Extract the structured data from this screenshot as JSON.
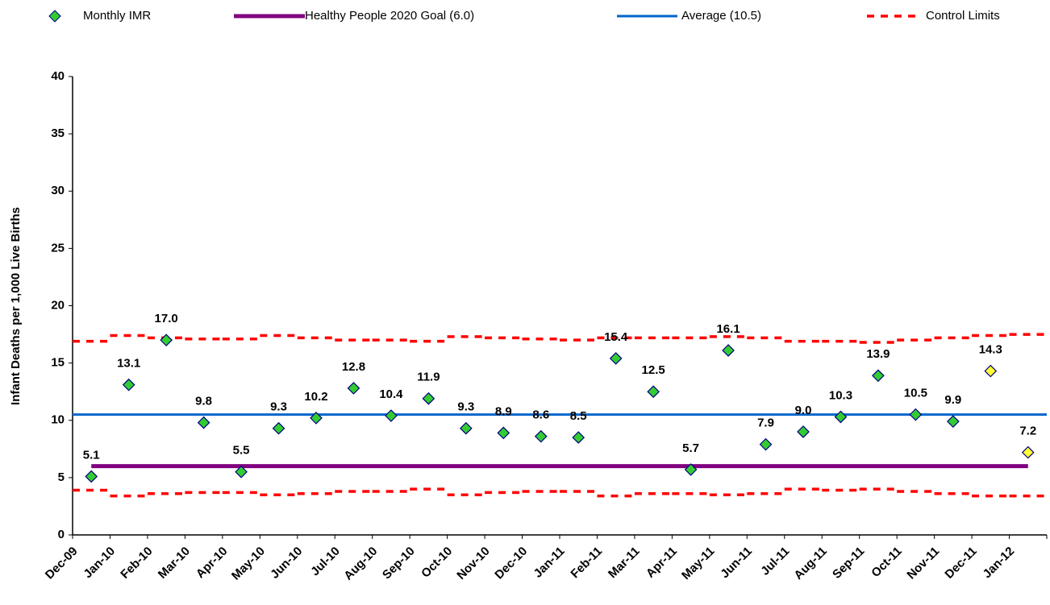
{
  "chart_data": {
    "type": "control-chart",
    "y_label": "Infant Deaths per 1,000 Live Births",
    "categories": [
      "Dec-09",
      "Jan-10",
      "Feb-10",
      "Mar-10",
      "Apr-10",
      "May-10",
      "Jun-10",
      "Jul-10",
      "Aug-10",
      "Sep-10",
      "Oct-10",
      "Nov-10",
      "Dec-10",
      "Jan-11",
      "Feb-11",
      "Mar-11",
      "Apr-11",
      "May-11",
      "Jun-11",
      "Jul-11",
      "Aug-11",
      "Sep-11",
      "Oct-11",
      "Nov-11",
      "Dec-11",
      "Jan-12"
    ],
    "ylim": [
      0,
      40
    ],
    "yticks": [
      0,
      5,
      10,
      15,
      20,
      25,
      30,
      35,
      40
    ],
    "grid": false,
    "series": [
      {
        "name": "Monthly IMR",
        "kind": "markers",
        "color": "#33cc33",
        "edge_color": "#000080",
        "point_colors": [
          "#33cc33",
          "#33cc33",
          "#33cc33",
          "#33cc33",
          "#33cc33",
          "#33cc33",
          "#33cc33",
          "#33cc33",
          "#33cc33",
          "#33cc33",
          "#33cc33",
          "#33cc33",
          "#33cc33",
          "#33cc33",
          "#33cc33",
          "#33cc33",
          "#33cc33",
          "#33cc33",
          "#33cc33",
          "#33cc33",
          "#33cc33",
          "#33cc33",
          "#33cc33",
          "#33cc33",
          "#ffff33",
          "#ffff33"
        ],
        "values": [
          5.1,
          13.1,
          17.0,
          9.8,
          5.5,
          9.3,
          10.2,
          12.8,
          10.4,
          11.9,
          9.3,
          8.9,
          8.6,
          8.5,
          15.4,
          12.5,
          5.7,
          16.1,
          7.9,
          9.0,
          10.3,
          13.9,
          10.5,
          9.9,
          14.3,
          7.2
        ],
        "value_labels": [
          "5.1",
          "13.1",
          "17.0",
          "9.8",
          "5.5",
          "9.3",
          "10.2",
          "12.8",
          "10.4",
          "11.9",
          "9.3",
          "8.9",
          "8.6",
          "8.5",
          "15.4",
          "12.5",
          "5.7",
          "16.1",
          "7.9",
          "9.0",
          "10.3",
          "13.9",
          "10.5",
          "9.9",
          "14.3",
          "7.2"
        ]
      },
      {
        "name": "Healthy People 2020 Goal (6.0)",
        "kind": "goal",
        "color": "#800080",
        "value": 6.0
      },
      {
        "name": "Average (10.5)",
        "kind": "average",
        "color": "#0066cc",
        "value": 10.5
      },
      {
        "name": "Control Limits",
        "kind": "limits",
        "color": "#ff0000",
        "upper": [
          16.9,
          17.4,
          17.2,
          17.1,
          17.1,
          17.4,
          17.2,
          17.0,
          17.0,
          16.9,
          17.3,
          17.2,
          17.1,
          17.0,
          17.2,
          17.2,
          17.2,
          17.3,
          17.2,
          16.9,
          16.9,
          16.8,
          17.0,
          17.2,
          17.4,
          17.5
        ],
        "lower": [
          3.9,
          3.4,
          3.6,
          3.7,
          3.7,
          3.5,
          3.6,
          3.8,
          3.8,
          4.0,
          3.5,
          3.7,
          3.8,
          3.8,
          3.4,
          3.6,
          3.6,
          3.5,
          3.6,
          4.0,
          3.9,
          4.0,
          3.8,
          3.6,
          3.4,
          3.4
        ]
      }
    ]
  }
}
